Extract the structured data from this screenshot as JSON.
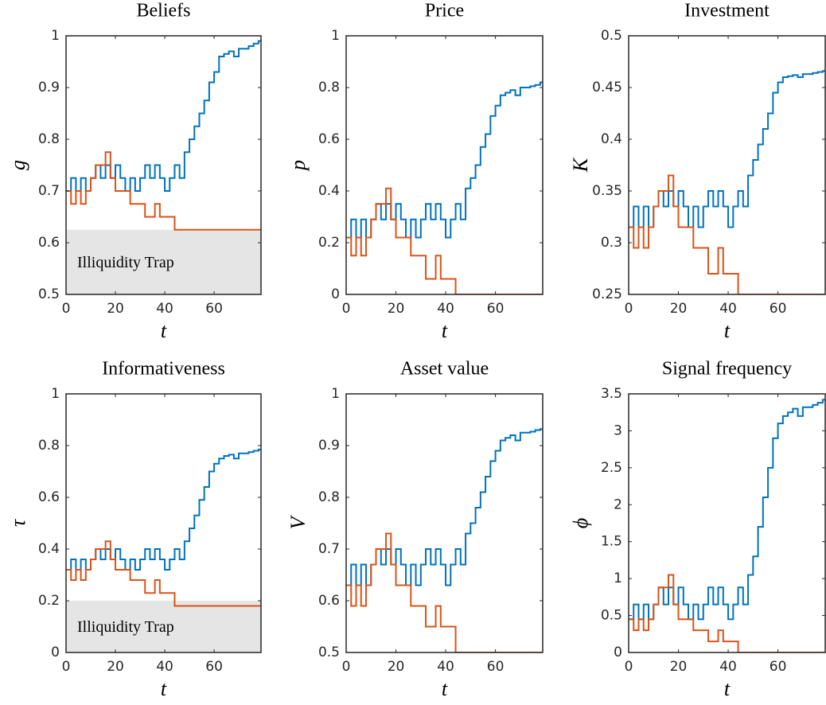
{
  "chart_data": [
    {
      "type": "line",
      "title": "Beliefs",
      "ylabel": "g",
      "xlabel": "t",
      "x": [
        0,
        2,
        4,
        6,
        8,
        10,
        12,
        14,
        16,
        18,
        20,
        22,
        24,
        26,
        28,
        30,
        32,
        34,
        36,
        38,
        40,
        42,
        44,
        46,
        48,
        50,
        52,
        54,
        56,
        58,
        60,
        62,
        64,
        66,
        68,
        70,
        72,
        74,
        76,
        78
      ],
      "series": [
        {
          "color": "#0072BD",
          "values": [
            0.7,
            0.725,
            0.7,
            0.725,
            0.7,
            0.725,
            0.75,
            0.725,
            0.75,
            0.725,
            0.75,
            0.725,
            0.7,
            0.725,
            0.7,
            0.725,
            0.75,
            0.725,
            0.75,
            0.725,
            0.7,
            0.725,
            0.75,
            0.725,
            0.775,
            0.8,
            0.825,
            0.85,
            0.875,
            0.91,
            0.93,
            0.96,
            0.965,
            0.97,
            0.96,
            0.975,
            0.975,
            0.98,
            0.985,
            0.99
          ]
        },
        {
          "color": "#D95319",
          "values": [
            0.7,
            0.675,
            0.7,
            0.675,
            0.7,
            0.725,
            0.75,
            0.75,
            0.775,
            0.725,
            0.7,
            0.7,
            0.7,
            0.675,
            0.675,
            0.675,
            0.65,
            0.65,
            0.675,
            0.65,
            0.65,
            0.65,
            0.625,
            0.625,
            0.625,
            0.625,
            0.625,
            0.625,
            0.625,
            0.625,
            0.625,
            0.625,
            0.625,
            0.625,
            0.625,
            0.625,
            0.625,
            0.625,
            0.625,
            0.625
          ]
        }
      ],
      "xlim": [
        0,
        79
      ],
      "xticks": [
        0,
        20,
        40,
        60
      ],
      "ylim": [
        0.5,
        1
      ],
      "yticks": [
        0.5,
        0.6,
        0.7,
        0.8,
        0.9,
        1
      ],
      "trap": {
        "value": 0.625,
        "label": "Illiquidity Trap"
      }
    },
    {
      "type": "line",
      "title": "Price",
      "ylabel": "p",
      "xlabel": "t",
      "x": [
        0,
        2,
        4,
        6,
        8,
        10,
        12,
        14,
        16,
        18,
        20,
        22,
        24,
        26,
        28,
        30,
        32,
        34,
        36,
        38,
        40,
        42,
        44,
        46,
        48,
        50,
        52,
        54,
        56,
        58,
        60,
        62,
        64,
        66,
        68,
        70,
        72,
        74,
        76,
        78
      ],
      "series": [
        {
          "color": "#0072BD",
          "values": [
            0.22,
            0.29,
            0.22,
            0.29,
            0.22,
            0.29,
            0.35,
            0.29,
            0.35,
            0.29,
            0.35,
            0.29,
            0.22,
            0.29,
            0.22,
            0.29,
            0.35,
            0.29,
            0.35,
            0.29,
            0.22,
            0.29,
            0.35,
            0.29,
            0.41,
            0.45,
            0.5,
            0.57,
            0.62,
            0.69,
            0.73,
            0.77,
            0.78,
            0.79,
            0.77,
            0.8,
            0.8,
            0.805,
            0.81,
            0.82
          ]
        },
        {
          "color": "#D95319",
          "values": [
            0.22,
            0.15,
            0.22,
            0.15,
            0.22,
            0.29,
            0.35,
            0.35,
            0.41,
            0.29,
            0.22,
            0.22,
            0.22,
            0.15,
            0.15,
            0.15,
            0.06,
            0.06,
            0.15,
            0.06,
            0.06,
            0.06,
            0,
            0,
            0,
            0,
            0,
            0,
            0,
            0,
            0,
            0,
            0,
            0,
            0,
            0,
            0,
            0,
            0,
            0
          ]
        }
      ],
      "xlim": [
        0,
        79
      ],
      "xticks": [
        0,
        20,
        40,
        60
      ],
      "ylim": [
        0,
        1
      ],
      "yticks": [
        0,
        0.2,
        0.4,
        0.6,
        0.8,
        1
      ]
    },
    {
      "type": "line",
      "title": "Investment",
      "ylabel": "K",
      "xlabel": "t",
      "x": [
        0,
        2,
        4,
        6,
        8,
        10,
        12,
        14,
        16,
        18,
        20,
        22,
        24,
        26,
        28,
        30,
        32,
        34,
        36,
        38,
        40,
        42,
        44,
        46,
        48,
        50,
        52,
        54,
        56,
        58,
        60,
        62,
        64,
        66,
        68,
        70,
        72,
        74,
        76,
        78
      ],
      "series": [
        {
          "color": "#0072BD",
          "values": [
            0.315,
            0.335,
            0.315,
            0.335,
            0.315,
            0.335,
            0.35,
            0.335,
            0.35,
            0.335,
            0.35,
            0.335,
            0.315,
            0.335,
            0.315,
            0.335,
            0.35,
            0.335,
            0.35,
            0.335,
            0.315,
            0.335,
            0.35,
            0.335,
            0.365,
            0.38,
            0.395,
            0.41,
            0.425,
            0.445,
            0.455,
            0.46,
            0.461,
            0.462,
            0.46,
            0.463,
            0.463,
            0.464,
            0.465,
            0.466
          ]
        },
        {
          "color": "#D95319",
          "values": [
            0.315,
            0.295,
            0.315,
            0.295,
            0.315,
            0.335,
            0.35,
            0.35,
            0.365,
            0.335,
            0.315,
            0.315,
            0.315,
            0.295,
            0.295,
            0.295,
            0.27,
            0.27,
            0.295,
            0.27,
            0.27,
            0.27,
            0.25,
            0.25,
            0.25,
            0.25,
            0.25,
            0.25,
            0.25,
            0.25,
            0.25,
            0.25,
            0.25,
            0.25,
            0.25,
            0.25,
            0.25,
            0.25,
            0.25,
            0.25
          ]
        }
      ],
      "xlim": [
        0,
        79
      ],
      "xticks": [
        0,
        20,
        40,
        60
      ],
      "ylim": [
        0.25,
        0.5
      ],
      "yticks": [
        0.25,
        0.3,
        0.35,
        0.4,
        0.45,
        0.5
      ]
    },
    {
      "type": "line",
      "title": "Informativeness",
      "ylabel": "τ",
      "xlabel": "t",
      "x": [
        0,
        2,
        4,
        6,
        8,
        10,
        12,
        14,
        16,
        18,
        20,
        22,
        24,
        26,
        28,
        30,
        32,
        34,
        36,
        38,
        40,
        42,
        44,
        46,
        48,
        50,
        52,
        54,
        56,
        58,
        60,
        62,
        64,
        66,
        68,
        70,
        72,
        74,
        76,
        78
      ],
      "series": [
        {
          "color": "#0072BD",
          "values": [
            0.32,
            0.36,
            0.32,
            0.36,
            0.32,
            0.36,
            0.4,
            0.36,
            0.4,
            0.36,
            0.4,
            0.36,
            0.32,
            0.36,
            0.32,
            0.36,
            0.4,
            0.36,
            0.4,
            0.36,
            0.32,
            0.36,
            0.4,
            0.36,
            0.43,
            0.48,
            0.53,
            0.59,
            0.64,
            0.7,
            0.73,
            0.75,
            0.76,
            0.765,
            0.75,
            0.77,
            0.77,
            0.775,
            0.78,
            0.785
          ]
        },
        {
          "color": "#D95319",
          "values": [
            0.32,
            0.28,
            0.32,
            0.28,
            0.32,
            0.36,
            0.4,
            0.4,
            0.43,
            0.36,
            0.32,
            0.32,
            0.32,
            0.28,
            0.28,
            0.28,
            0.23,
            0.23,
            0.28,
            0.23,
            0.23,
            0.23,
            0.18,
            0.18,
            0.18,
            0.18,
            0.18,
            0.18,
            0.18,
            0.18,
            0.18,
            0.18,
            0.18,
            0.18,
            0.18,
            0.18,
            0.18,
            0.18,
            0.18,
            0.18
          ]
        }
      ],
      "xlim": [
        0,
        79
      ],
      "xticks": [
        0,
        20,
        40,
        60
      ],
      "ylim": [
        0,
        1
      ],
      "yticks": [
        0,
        0.2,
        0.4,
        0.6,
        0.8,
        1
      ],
      "trap": {
        "value": 0.2,
        "label": "Illiquidity Trap"
      }
    },
    {
      "type": "line",
      "title": "Asset value",
      "ylabel": "V",
      "xlabel": "t",
      "x": [
        0,
        2,
        4,
        6,
        8,
        10,
        12,
        14,
        16,
        18,
        20,
        22,
        24,
        26,
        28,
        30,
        32,
        34,
        36,
        38,
        40,
        42,
        44,
        46,
        48,
        50,
        52,
        54,
        56,
        58,
        60,
        62,
        64,
        66,
        68,
        70,
        72,
        74,
        76,
        78
      ],
      "series": [
        {
          "color": "#0072BD",
          "values": [
            0.63,
            0.67,
            0.63,
            0.67,
            0.63,
            0.67,
            0.7,
            0.67,
            0.7,
            0.67,
            0.7,
            0.67,
            0.63,
            0.67,
            0.63,
            0.67,
            0.7,
            0.67,
            0.7,
            0.67,
            0.63,
            0.67,
            0.7,
            0.67,
            0.73,
            0.75,
            0.78,
            0.81,
            0.84,
            0.87,
            0.89,
            0.91,
            0.915,
            0.92,
            0.91,
            0.925,
            0.925,
            0.927,
            0.93,
            0.932
          ]
        },
        {
          "color": "#D95319",
          "values": [
            0.63,
            0.59,
            0.63,
            0.59,
            0.63,
            0.67,
            0.7,
            0.7,
            0.73,
            0.67,
            0.63,
            0.63,
            0.63,
            0.59,
            0.59,
            0.59,
            0.55,
            0.55,
            0.59,
            0.55,
            0.55,
            0.55,
            0.5,
            0.5,
            0.5,
            0.5,
            0.5,
            0.5,
            0.5,
            0.5,
            0.5,
            0.5,
            0.5,
            0.5,
            0.5,
            0.5,
            0.5,
            0.5,
            0.5,
            0.5
          ]
        }
      ],
      "xlim": [
        0,
        79
      ],
      "xticks": [
        0,
        20,
        40,
        60
      ],
      "ylim": [
        0.5,
        1
      ],
      "yticks": [
        0.5,
        0.6,
        0.7,
        0.8,
        0.9,
        1
      ]
    },
    {
      "type": "line",
      "title": "Signal frequency",
      "ylabel": "ϕ",
      "xlabel": "t",
      "x": [
        0,
        2,
        4,
        6,
        8,
        10,
        12,
        14,
        16,
        18,
        20,
        22,
        24,
        26,
        28,
        30,
        32,
        34,
        36,
        38,
        40,
        42,
        44,
        46,
        48,
        50,
        52,
        54,
        56,
        58,
        60,
        62,
        64,
        66,
        68,
        70,
        72,
        74,
        76,
        78
      ],
      "series": [
        {
          "color": "#0072BD",
          "values": [
            0.45,
            0.65,
            0.45,
            0.65,
            0.45,
            0.65,
            0.88,
            0.65,
            0.88,
            0.65,
            0.88,
            0.65,
            0.45,
            0.65,
            0.45,
            0.65,
            0.88,
            0.65,
            0.88,
            0.65,
            0.45,
            0.65,
            0.88,
            0.65,
            1.05,
            1.3,
            1.7,
            2.1,
            2.5,
            2.9,
            3.1,
            3.2,
            3.25,
            3.3,
            3.2,
            3.32,
            3.32,
            3.35,
            3.38,
            3.42
          ]
        },
        {
          "color": "#D95319",
          "values": [
            0.45,
            0.3,
            0.45,
            0.3,
            0.45,
            0.65,
            0.88,
            0.88,
            1.05,
            0.65,
            0.45,
            0.45,
            0.45,
            0.3,
            0.3,
            0.3,
            0.15,
            0.15,
            0.3,
            0.15,
            0.15,
            0.15,
            0,
            0,
            0,
            0,
            0,
            0,
            0,
            0,
            0,
            0,
            0,
            0,
            0,
            0,
            0,
            0,
            0,
            0
          ]
        }
      ],
      "xlim": [
        0,
        79
      ],
      "xticks": [
        0,
        20,
        40,
        60
      ],
      "ylim": [
        0,
        3.5
      ],
      "yticks": [
        0,
        0.5,
        1,
        1.5,
        2,
        2.5,
        3,
        3.5
      ]
    }
  ]
}
